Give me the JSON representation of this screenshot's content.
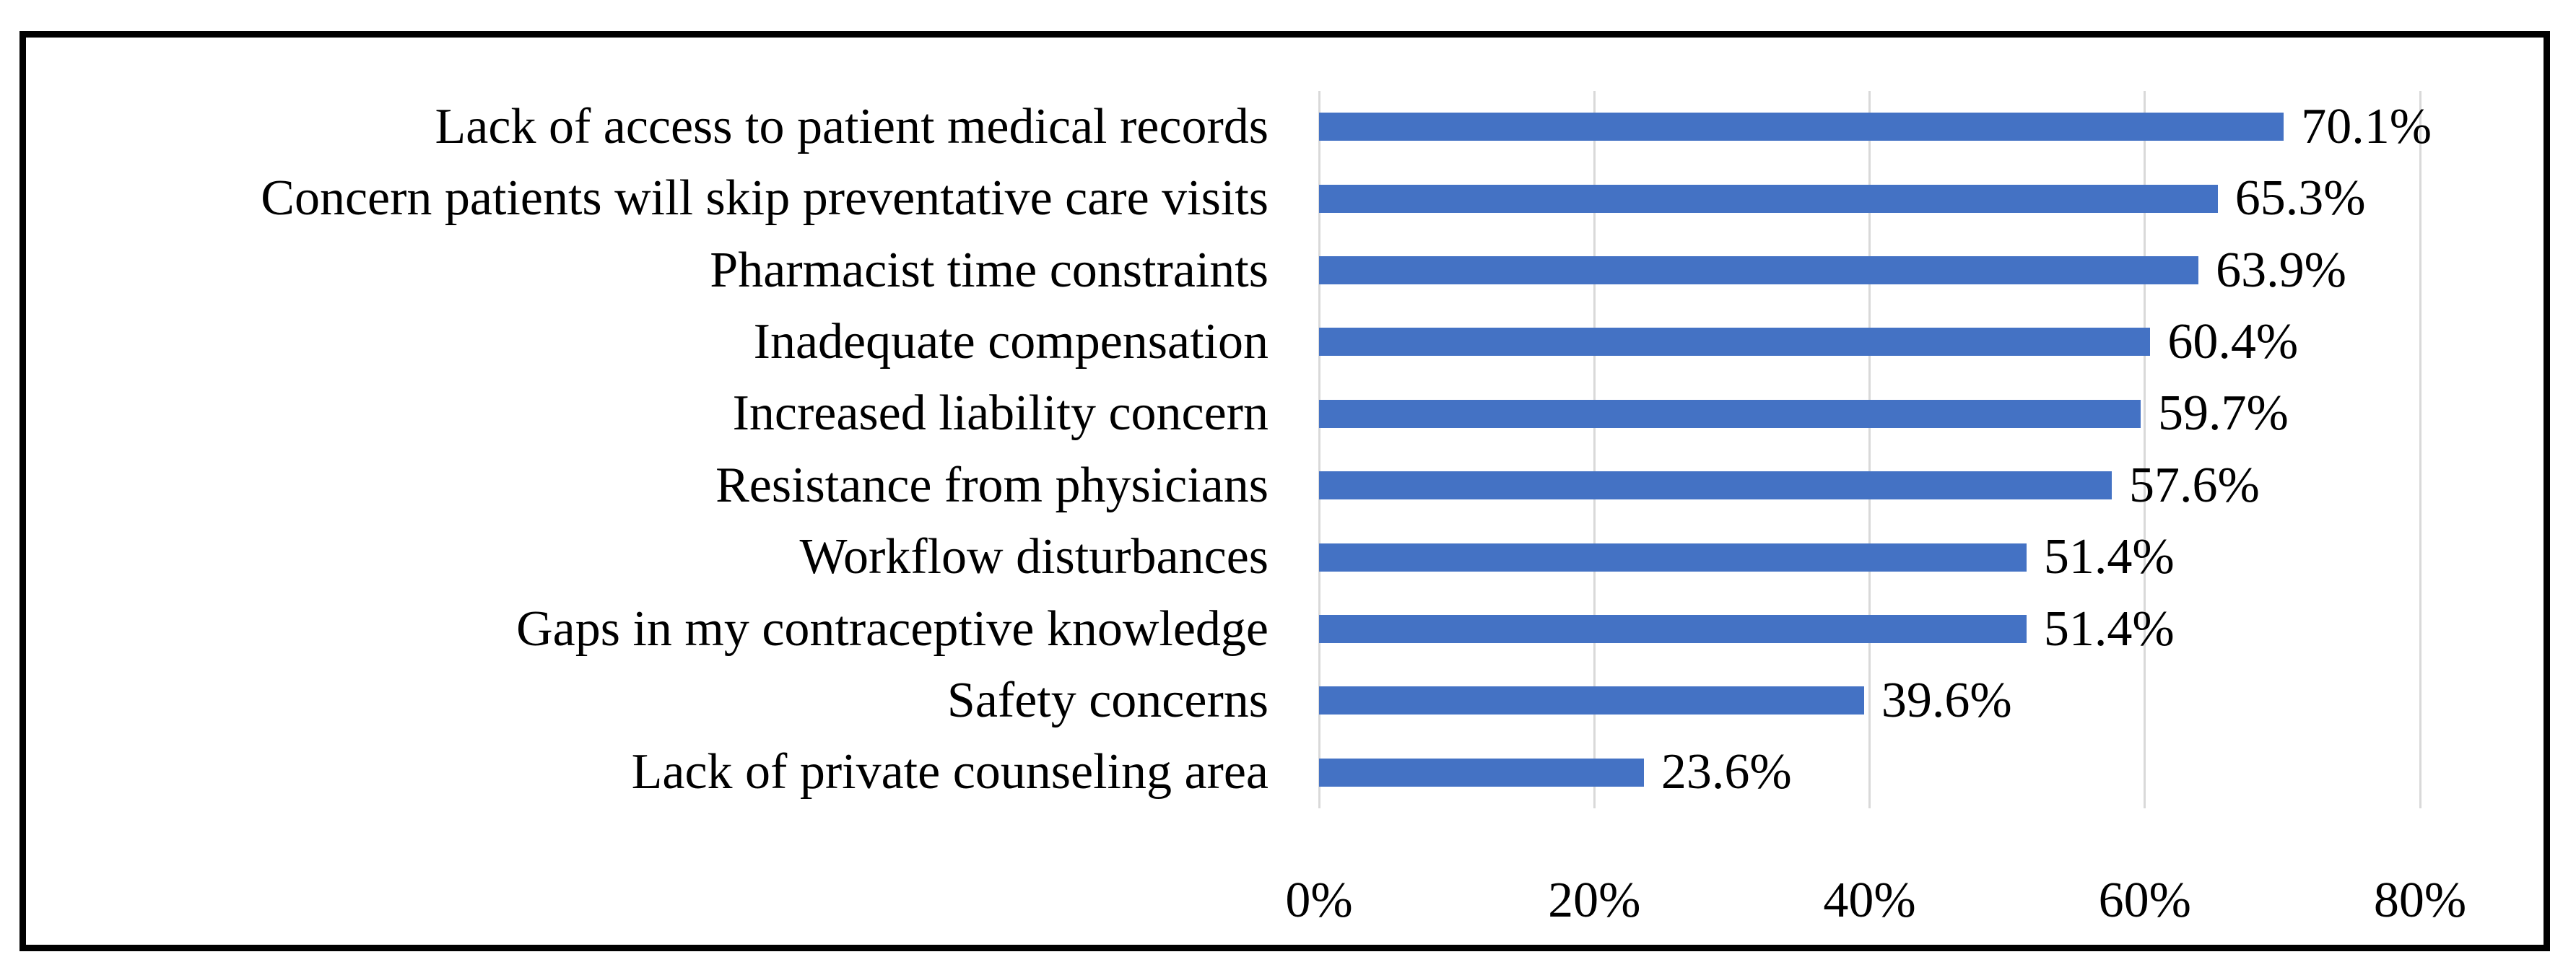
{
  "figure": {
    "background": "#FFFFFF",
    "border_color": "#000000"
  },
  "chart_data": {
    "type": "bar",
    "orientation": "horizontal",
    "title": "",
    "subtitle": "",
    "xlabel": "",
    "ylabel": "",
    "legend": "none",
    "grid": true,
    "xlim": [
      0,
      80
    ],
    "categories": [
      "Lack of access to patient medical records",
      "Concern patients will skip preventative care visits",
      "Pharmacist time constraints",
      "Inadequate compensation",
      "Increased liability concern",
      "Resistance from physicians",
      "Workflow disturbances",
      "Gaps in my contraceptive knowledge",
      "Safety concerns",
      "Lack of private counseling area"
    ],
    "values": [
      70.1,
      65.3,
      63.9,
      60.4,
      59.7,
      57.6,
      51.4,
      51.4,
      39.6,
      23.6
    ],
    "data_labels": [
      "70.1%",
      "65.3%",
      "63.9%",
      "60.4%",
      "59.7%",
      "57.6%",
      "51.4%",
      "51.4%",
      "39.6%",
      "23.6%"
    ],
    "x_tick_values": [
      0,
      20,
      40,
      60,
      80
    ],
    "x_tick_labels": [
      "0%",
      "20%",
      "40%",
      "60%",
      "80%"
    ],
    "bar_color": "#4472C4",
    "gridline_color": "#D9D9D9",
    "text_color": "#000000"
  }
}
